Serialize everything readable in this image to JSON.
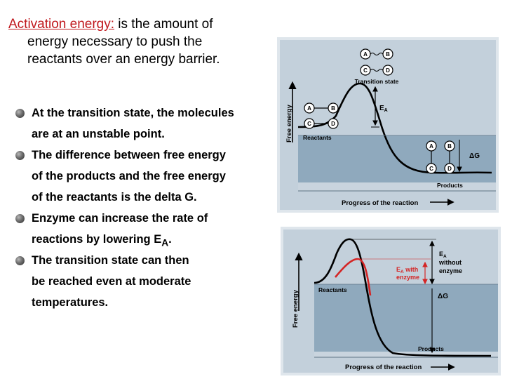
{
  "title": {
    "term": "Activation energy:",
    "rest_line1": " is the amount of",
    "line2": "energy necessary to push the",
    "line3": "reactants over an energy barrier."
  },
  "bullets": [
    {
      "lines": [
        "At the transition state, the molecules",
        "are at an unstable point."
      ]
    },
    {
      "lines": [
        "The difference between free energy",
        "of the products and the free energy",
        "of the reactants is the delta G."
      ]
    },
    {
      "lines": [
        "Enzyme can increase the rate of"
      ],
      "last_prefix": "reactions by lowering E",
      "last_sub": "A",
      "last_suffix": "."
    },
    {
      "lines": [
        "The transition state can then",
        "be reached even at moderate",
        "temperatures."
      ]
    }
  ],
  "figure1": {
    "ylabel": "Free energy",
    "xlabel": "Progress of the reaction",
    "transition_label": "Transition state",
    "reactants_label": "Reactants",
    "products_label": "Products",
    "ea_label": "E",
    "ea_sub": "A",
    "dg_label": "ΔG",
    "molecules": [
      "A",
      "B",
      "C",
      "D"
    ],
    "colors": {
      "bg": "#c3d0db",
      "band": "#8fa9bd",
      "curve": "#000000"
    }
  },
  "figure2": {
    "ylabel": "Free energy",
    "xlabel": "Progress of the reaction",
    "reactants_label": "Reactants",
    "products_label": "Products",
    "ea_enzyme_label": "E",
    "ea_enzyme_sub": "A",
    "ea_enzyme_with": " with",
    "ea_enzyme_line2": "enzyme",
    "ea_no_label": "E",
    "ea_no_sub": "A",
    "ea_no_line2": "without",
    "ea_no_line3": "enzyme",
    "dg_label": "ΔG",
    "colors": {
      "bg": "#c3d0db",
      "band": "#8fa9bd",
      "curve_no_enzyme": "#000000",
      "curve_enzyme": "#d42525"
    }
  }
}
